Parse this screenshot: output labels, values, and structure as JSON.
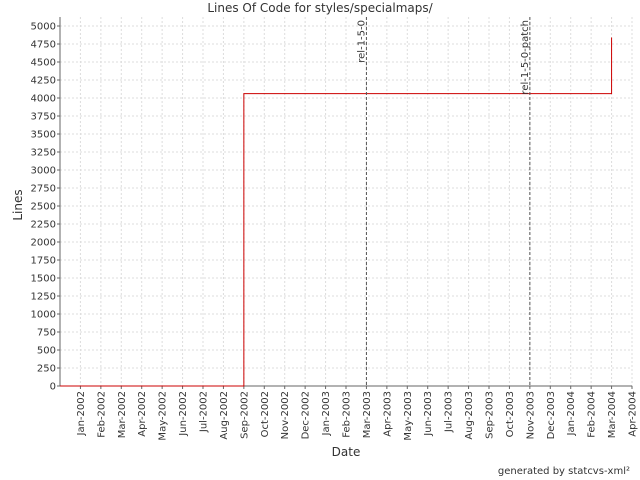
{
  "chart_data": {
    "type": "line",
    "title": "Lines Of Code for styles/specialmaps/",
    "x_label": "Date",
    "y_label": "Lines",
    "footer": "generated by statcvs-xml²",
    "step": true,
    "grid": true,
    "xlim": [
      "Dec-2001",
      "Apr-2004"
    ],
    "xticks": [
      "Jan-2002",
      "Feb-2002",
      "Mar-2002",
      "Apr-2002",
      "May-2002",
      "Jun-2002",
      "Jul-2002",
      "Aug-2002",
      "Sep-2002",
      "Oct-2002",
      "Nov-2002",
      "Dec-2002",
      "Jan-2003",
      "Feb-2003",
      "Mar-2003",
      "Apr-2003",
      "May-2003",
      "Jun-2003",
      "Jul-2003",
      "Aug-2003",
      "Sep-2003",
      "Oct-2003",
      "Nov-2003",
      "Dec-2003",
      "Jan-2004",
      "Feb-2004",
      "Mar-2004",
      "Apr-2004"
    ],
    "ylim": [
      0,
      5125
    ],
    "yticks": [
      0,
      250,
      500,
      750,
      1000,
      1250,
      1500,
      1750,
      2000,
      2250,
      2500,
      2750,
      3000,
      3250,
      3500,
      3750,
      4000,
      4250,
      4500,
      4750,
      5000
    ],
    "series": [
      {
        "color": "#cc0000",
        "x": [
          "Dec-2001",
          "Sep-2002",
          "Mar-2004"
        ],
        "values": [
          0,
          4060,
          4840
        ]
      }
    ],
    "annotations": [
      {
        "x": "Mar-2003",
        "label": "rel-1-5-0"
      },
      {
        "x": "Nov-2003",
        "label": "rel-1-5-0-patch"
      }
    ]
  }
}
